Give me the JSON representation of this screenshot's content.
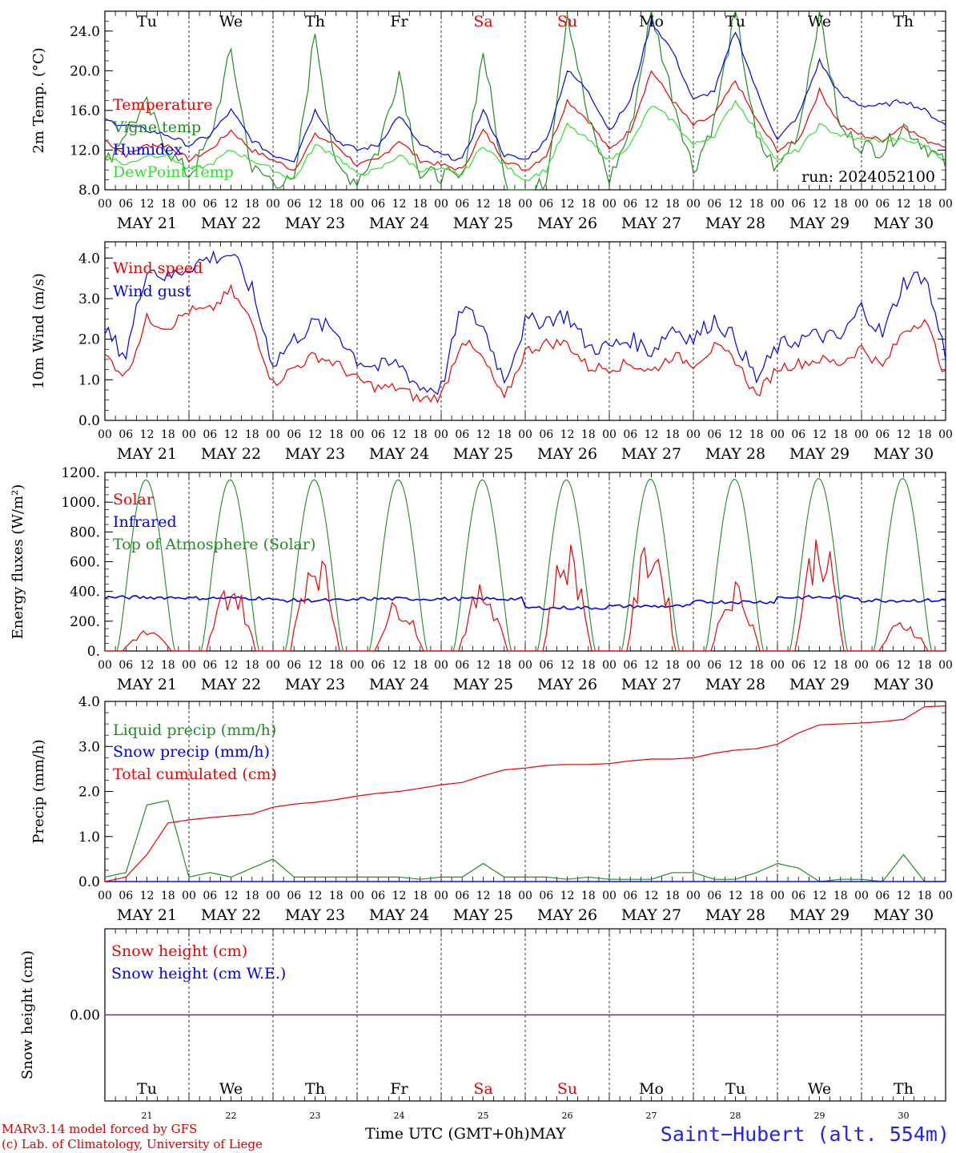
{
  "chart_data": [
    {
      "type": "line",
      "ylabel": "2m Temp. (°C)",
      "ylim": [
        8,
        26
      ],
      "yticks": [
        8.0,
        12.0,
        16.0,
        20.0,
        24.0
      ],
      "ytick_labels": [
        "8.0",
        "12.0",
        "16.0",
        "20.0",
        "24.0"
      ],
      "annotation": "run: 2024052100",
      "x_hours": [
        0,
        6,
        12,
        18,
        24,
        30,
        36,
        42,
        48,
        54,
        60,
        66,
        72,
        78,
        84,
        90,
        96,
        102,
        108,
        114,
        120,
        126,
        132,
        138,
        144,
        150,
        156,
        162,
        168,
        174,
        180,
        186,
        192,
        198,
        204,
        210,
        216,
        222,
        228,
        234,
        240
      ],
      "series": [
        {
          "name": "Temperature",
          "color": "#ee0000",
          "values": [
            13.0,
            11.5,
            12.5,
            12.5,
            11.0,
            12.0,
            14.0,
            12.0,
            11.0,
            10.0,
            13.5,
            12.5,
            10.5,
            11.0,
            13.0,
            11.0,
            10.5,
            10.0,
            14.0,
            11.0,
            10.0,
            11.5,
            17.0,
            15.0,
            12.0,
            14.0,
            20.0,
            17.0,
            14.5,
            15.5,
            19.0,
            15.0,
            12.0,
            13.0,
            18.0,
            14.5,
            13.5,
            13.0,
            14.5,
            13.0,
            12.5
          ]
        },
        {
          "name": "Vigne temp",
          "color": "#228b22",
          "values": [
            10.5,
            14.0,
            16.5,
            12.0,
            9.5,
            13.0,
            22.0,
            10.0,
            9.0,
            8.5,
            24.0,
            10.0,
            9.0,
            12.0,
            20.0,
            9.5,
            9.5,
            9.0,
            22.0,
            9.0,
            7.0,
            9.0,
            26.0,
            15.0,
            9.0,
            14.0,
            26.0,
            17.5,
            10.0,
            15.0,
            26.0,
            13.0,
            10.0,
            14.0,
            26.0,
            14.0,
            12.5,
            12.0,
            14.5,
            12.5,
            10.5
          ]
        },
        {
          "name": "Humidex",
          "color": "#0000ee",
          "values": [
            15.0,
            14.5,
            14.0,
            13.5,
            12.5,
            13.5,
            16.0,
            13.0,
            11.5,
            11.0,
            16.0,
            13.0,
            12.0,
            12.5,
            15.5,
            12.5,
            11.5,
            11.0,
            16.0,
            11.5,
            11.0,
            13.0,
            20.0,
            18.0,
            14.0,
            17.0,
            25.0,
            22.0,
            17.0,
            18.0,
            24.0,
            18.0,
            13.0,
            15.5,
            21.0,
            17.5,
            16.5,
            16.5,
            17.0,
            16.0,
            14.5
          ]
        },
        {
          "name": "DewPoint Temp",
          "color": "#33dd33",
          "values": [
            11.5,
            10.5,
            11.5,
            11.5,
            10.0,
            10.5,
            12.0,
            11.0,
            10.0,
            9.0,
            12.5,
            11.5,
            9.5,
            10.0,
            11.5,
            10.0,
            10.0,
            9.5,
            12.5,
            10.5,
            9.0,
            10.0,
            14.5,
            13.0,
            11.0,
            12.5,
            16.5,
            15.0,
            12.5,
            13.5,
            17.0,
            14.0,
            11.0,
            12.0,
            14.5,
            13.5,
            13.0,
            13.0,
            13.0,
            12.5,
            11.0
          ]
        }
      ]
    },
    {
      "type": "line",
      "ylabel": "10m Wind (m/s)",
      "ylim": [
        0,
        4.4
      ],
      "yticks": [
        0.0,
        1.0,
        2.0,
        3.0,
        4.0
      ],
      "ytick_labels": [
        "0.0",
        "1.0",
        "2.0",
        "3.0",
        "4.0"
      ],
      "x_hours": [
        0,
        6,
        12,
        18,
        24,
        30,
        36,
        42,
        48,
        54,
        60,
        66,
        72,
        78,
        84,
        90,
        96,
        102,
        108,
        114,
        120,
        126,
        132,
        138,
        144,
        150,
        156,
        162,
        168,
        174,
        180,
        186,
        192,
        198,
        204,
        210,
        216,
        222,
        228,
        234,
        240
      ],
      "series": [
        {
          "name": "Wind speed",
          "color": "#ee0000",
          "values": [
            1.6,
            1.1,
            2.5,
            2.3,
            2.7,
            2.7,
            3.2,
            2.4,
            0.9,
            1.3,
            1.6,
            1.4,
            1.0,
            0.8,
            0.8,
            0.5,
            0.6,
            2.0,
            1.5,
            0.5,
            1.7,
            1.9,
            1.9,
            1.3,
            1.3,
            1.4,
            1.2,
            1.6,
            1.4,
            1.8,
            1.5,
            0.6,
            1.3,
            1.4,
            1.5,
            1.4,
            1.8,
            1.3,
            2.2,
            2.5,
            1.1
          ]
        },
        {
          "name": "Wind gust",
          "color": "#0000ee",
          "values": [
            2.2,
            1.6,
            3.8,
            3.5,
            3.8,
            4.0,
            4.1,
            3.2,
            1.4,
            2.0,
            2.4,
            2.2,
            1.5,
            1.3,
            1.4,
            0.8,
            0.8,
            2.8,
            2.3,
            1.0,
            2.4,
            2.5,
            2.6,
            1.8,
            1.8,
            2.0,
            1.7,
            2.3,
            2.0,
            2.5,
            2.0,
            1.0,
            1.8,
            2.0,
            2.1,
            2.0,
            2.8,
            2.1,
            3.4,
            3.6,
            1.6
          ]
        }
      ]
    },
    {
      "type": "line",
      "ylabel": "Energy fluxes (W/m²)",
      "ylim": [
        0,
        1200
      ],
      "yticks": [
        0,
        200,
        400,
        600,
        800,
        1000,
        1200
      ],
      "ytick_labels": [
        "0.",
        "200.",
        "400.",
        "600.",
        "800.",
        "1000.",
        "1200."
      ],
      "series": [
        {
          "name": "Solar",
          "color": "#ee0000",
          "daily_peak": [
            150,
            500,
            750,
            370,
            470,
            770,
            830,
            490,
            860,
            220
          ]
        },
        {
          "name": "Infrared",
          "color": "#0000ee",
          "daily_level": [
            360,
            355,
            340,
            350,
            350,
            290,
            300,
            330,
            360,
            340
          ]
        },
        {
          "name": "Top of Atmosphere (Solar)",
          "color": "#228b22",
          "daily_peak": [
            1150,
            1150,
            1150,
            1150,
            1150,
            1150,
            1155,
            1155,
            1160,
            1160
          ]
        }
      ]
    },
    {
      "type": "line",
      "ylabel": "Precip (mm/h)",
      "ylim": [
        0,
        4
      ],
      "yticks": [
        0.0,
        1.0,
        2.0,
        3.0,
        4.0
      ],
      "ytick_labels": [
        "0.0",
        "1.0",
        "2.0",
        "3.0",
        "4.0"
      ],
      "x_hours": [
        0,
        6,
        12,
        18,
        24,
        30,
        36,
        42,
        48,
        54,
        60,
        66,
        72,
        78,
        84,
        90,
        96,
        102,
        108,
        114,
        120,
        126,
        132,
        138,
        144,
        150,
        156,
        162,
        168,
        174,
        180,
        186,
        192,
        198,
        204,
        210,
        216,
        222,
        228,
        234,
        240
      ],
      "series": [
        {
          "name": "Liquid precip (mm/h)",
          "color": "#228b22",
          "values": [
            0.1,
            0.2,
            1.7,
            1.8,
            0.1,
            0.2,
            0.1,
            0.3,
            0.5,
            0.1,
            0.1,
            0.1,
            0.1,
            0.1,
            0.1,
            0.05,
            0.1,
            0.1,
            0.4,
            0.1,
            0.1,
            0.1,
            0.05,
            0.1,
            0.05,
            0.05,
            0.05,
            0.2,
            0.2,
            0.05,
            0.05,
            0.2,
            0.4,
            0.3,
            0.0,
            0.05,
            0.05,
            0.0,
            0.6,
            0.0,
            0.0
          ]
        },
        {
          "name": "Snow precip (mm/h)",
          "color": "#0000ee",
          "values": [
            0,
            0,
            0,
            0,
            0,
            0,
            0,
            0,
            0,
            0,
            0,
            0,
            0,
            0,
            0,
            0,
            0,
            0,
            0,
            0,
            0,
            0,
            0,
            0,
            0,
            0,
            0,
            0,
            0,
            0,
            0,
            0,
            0,
            0,
            0,
            0,
            0,
            0,
            0,
            0,
            0
          ]
        },
        {
          "name": "Total cumulated (cm)",
          "color": "#ee0000",
          "values": [
            0.0,
            0.1,
            0.6,
            1.3,
            1.37,
            1.42,
            1.46,
            1.5,
            1.65,
            1.72,
            1.76,
            1.82,
            1.9,
            1.96,
            2.0,
            2.07,
            2.15,
            2.2,
            2.35,
            2.48,
            2.52,
            2.58,
            2.6,
            2.6,
            2.62,
            2.68,
            2.72,
            2.72,
            2.75,
            2.85,
            2.92,
            2.95,
            3.05,
            3.3,
            3.48,
            3.5,
            3.52,
            3.55,
            3.6,
            3.88,
            3.9
          ]
        }
      ]
    },
    {
      "type": "line",
      "ylabel": "Snow height (cm)",
      "ylim": [
        -1,
        1
      ],
      "yticks": [
        0.0
      ],
      "ytick_labels": [
        "0.00"
      ],
      "series": [
        {
          "name": "Snow height (cm)",
          "color": "#ee0000",
          "values": [
            0,
            0
          ]
        },
        {
          "name": "Snow height (cm W.E.)",
          "color": "#0000ee",
          "values": [
            0,
            0
          ]
        }
      ]
    }
  ],
  "days": [
    {
      "dow": "Tu",
      "date": "MAY 21",
      "num": "21",
      "weekend": false
    },
    {
      "dow": "We",
      "date": "MAY 22",
      "num": "22",
      "weekend": false
    },
    {
      "dow": "Th",
      "date": "MAY 23",
      "num": "23",
      "weekend": false
    },
    {
      "dow": "Fr",
      "date": "MAY 24",
      "num": "24",
      "weekend": false
    },
    {
      "dow": "Sa",
      "date": "MAY 25",
      "num": "25",
      "weekend": true
    },
    {
      "dow": "Su",
      "date": "MAY 26",
      "num": "26",
      "weekend": true
    },
    {
      "dow": "Mo",
      "date": "MAY 27",
      "num": "27",
      "weekend": false
    },
    {
      "dow": "Tu",
      "date": "MAY 28",
      "num": "28",
      "weekend": false
    },
    {
      "dow": "We",
      "date": "MAY 29",
      "num": "29",
      "weekend": false
    },
    {
      "dow": "Th",
      "date": "MAY 30",
      "num": "30",
      "weekend": false
    }
  ],
  "hour_ticks": [
    "00",
    "06",
    "12",
    "18"
  ],
  "last_hour_tick": "00",
  "colors": {
    "weekday": "#000000",
    "weekend": "#ee0000",
    "station": "#2222ee",
    "credit": "#d40000"
  },
  "footer": {
    "model": "MARv3.14 model forced by GFS",
    "credit": "(c) Lab. of Climatology, University of Liege",
    "axis_title": "Time UTC (GMT+0h)",
    "month": "MAY",
    "station": "Saint−Hubert (alt. 554m)"
  }
}
